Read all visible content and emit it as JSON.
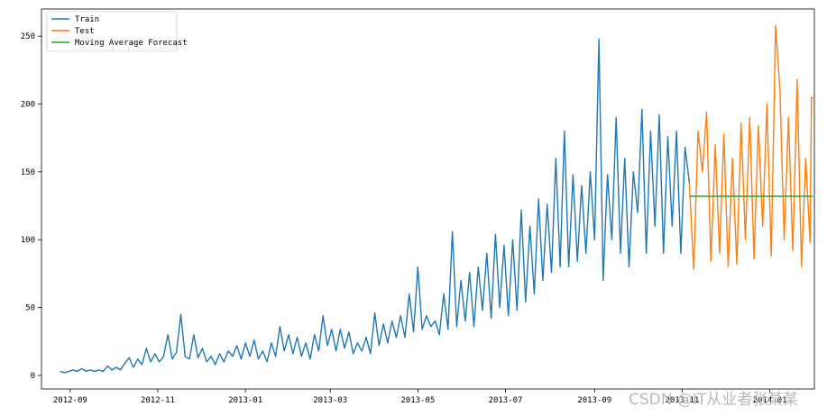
{
  "chart_data": {
    "type": "line",
    "title": "",
    "xlabel": "",
    "ylabel": "",
    "x_axis": {
      "type": "date",
      "range": [
        "2012-08-12",
        "2014-02-01"
      ],
      "ticks": [
        {
          "date": "2012-09-01",
          "label": "2012-09"
        },
        {
          "date": "2012-11-01",
          "label": "2012-11"
        },
        {
          "date": "2013-01-01",
          "label": "2013-01"
        },
        {
          "date": "2013-03-01",
          "label": "2013-03"
        },
        {
          "date": "2013-05-01",
          "label": "2013-05"
        },
        {
          "date": "2013-07-01",
          "label": "2013-07"
        },
        {
          "date": "2013-09-01",
          "label": "2013-09"
        },
        {
          "date": "2013-11-01",
          "label": "2013-11"
        },
        {
          "date": "2014-01-01",
          "label": "2014-01"
        }
      ]
    },
    "y_axis": {
      "range": [
        -10,
        270
      ],
      "ticks": [
        0,
        50,
        100,
        150,
        200,
        250
      ]
    },
    "grid": false,
    "legend": {
      "placement": "upper-left"
    },
    "series": [
      {
        "name": "Train",
        "color": "#1f77b4",
        "points": [
          [
            "2012-08-25",
            3
          ],
          [
            "2012-08-28",
            2
          ],
          [
            "2012-08-31",
            3
          ],
          [
            "2012-09-03",
            4
          ],
          [
            "2012-09-06",
            3
          ],
          [
            "2012-09-09",
            5
          ],
          [
            "2012-09-12",
            3
          ],
          [
            "2012-09-15",
            4
          ],
          [
            "2012-09-18",
            3
          ],
          [
            "2012-09-21",
            4
          ],
          [
            "2012-09-24",
            3
          ],
          [
            "2012-09-27",
            7
          ],
          [
            "2012-09-30",
            4
          ],
          [
            "2012-10-03",
            6
          ],
          [
            "2012-10-06",
            4
          ],
          [
            "2012-10-09",
            9
          ],
          [
            "2012-10-12",
            13
          ],
          [
            "2012-10-15",
            6
          ],
          [
            "2012-10-18",
            12
          ],
          [
            "2012-10-21",
            8
          ],
          [
            "2012-10-24",
            20
          ],
          [
            "2012-10-27",
            10
          ],
          [
            "2012-10-30",
            16
          ],
          [
            "2012-11-02",
            10
          ],
          [
            "2012-11-05",
            14
          ],
          [
            "2012-11-08",
            30
          ],
          [
            "2012-11-11",
            12
          ],
          [
            "2012-11-14",
            17
          ],
          [
            "2012-11-17",
            45
          ],
          [
            "2012-11-20",
            14
          ],
          [
            "2012-11-23",
            12
          ],
          [
            "2012-11-26",
            30
          ],
          [
            "2012-11-29",
            13
          ],
          [
            "2012-12-02",
            20
          ],
          [
            "2012-12-05",
            10
          ],
          [
            "2012-12-08",
            14
          ],
          [
            "2012-12-11",
            8
          ],
          [
            "2012-12-14",
            16
          ],
          [
            "2012-12-17",
            10
          ],
          [
            "2012-12-20",
            18
          ],
          [
            "2012-12-23",
            14
          ],
          [
            "2012-12-26",
            22
          ],
          [
            "2012-12-29",
            12
          ],
          [
            "2013-01-01",
            24
          ],
          [
            "2013-01-04",
            14
          ],
          [
            "2013-01-07",
            26
          ],
          [
            "2013-01-10",
            12
          ],
          [
            "2013-01-13",
            18
          ],
          [
            "2013-01-16",
            10
          ],
          [
            "2013-01-19",
            24
          ],
          [
            "2013-01-22",
            14
          ],
          [
            "2013-01-25",
            36
          ],
          [
            "2013-01-28",
            18
          ],
          [
            "2013-01-31",
            30
          ],
          [
            "2013-02-03",
            16
          ],
          [
            "2013-02-06",
            28
          ],
          [
            "2013-02-09",
            14
          ],
          [
            "2013-02-12",
            24
          ],
          [
            "2013-02-15",
            12
          ],
          [
            "2013-02-18",
            30
          ],
          [
            "2013-02-21",
            18
          ],
          [
            "2013-02-24",
            44
          ],
          [
            "2013-02-27",
            22
          ],
          [
            "2013-03-02",
            34
          ],
          [
            "2013-03-05",
            18
          ],
          [
            "2013-03-08",
            34
          ],
          [
            "2013-03-11",
            20
          ],
          [
            "2013-03-14",
            32
          ],
          [
            "2013-03-17",
            16
          ],
          [
            "2013-03-20",
            24
          ],
          [
            "2013-03-23",
            18
          ],
          [
            "2013-03-26",
            28
          ],
          [
            "2013-03-29",
            16
          ],
          [
            "2013-04-01",
            46
          ],
          [
            "2013-04-04",
            22
          ],
          [
            "2013-04-07",
            38
          ],
          [
            "2013-04-10",
            24
          ],
          [
            "2013-04-13",
            40
          ],
          [
            "2013-04-16",
            28
          ],
          [
            "2013-04-19",
            44
          ],
          [
            "2013-04-22",
            28
          ],
          [
            "2013-04-25",
            60
          ],
          [
            "2013-04-28",
            32
          ],
          [
            "2013-05-01",
            80
          ],
          [
            "2013-05-04",
            34
          ],
          [
            "2013-05-07",
            44
          ],
          [
            "2013-05-10",
            36
          ],
          [
            "2013-05-13",
            40
          ],
          [
            "2013-05-16",
            30
          ],
          [
            "2013-05-19",
            60
          ],
          [
            "2013-05-22",
            34
          ],
          [
            "2013-05-25",
            106
          ],
          [
            "2013-05-28",
            36
          ],
          [
            "2013-05-31",
            70
          ],
          [
            "2013-06-03",
            40
          ],
          [
            "2013-06-06",
            76
          ],
          [
            "2013-06-09",
            36
          ],
          [
            "2013-06-12",
            80
          ],
          [
            "2013-06-15",
            48
          ],
          [
            "2013-06-18",
            90
          ],
          [
            "2013-06-21",
            42
          ],
          [
            "2013-06-24",
            104
          ],
          [
            "2013-06-27",
            50
          ],
          [
            "2013-06-30",
            96
          ],
          [
            "2013-07-03",
            44
          ],
          [
            "2013-07-06",
            100
          ],
          [
            "2013-07-09",
            48
          ],
          [
            "2013-07-12",
            122
          ],
          [
            "2013-07-15",
            54
          ],
          [
            "2013-07-18",
            110
          ],
          [
            "2013-07-21",
            60
          ],
          [
            "2013-07-24",
            130
          ],
          [
            "2013-07-27",
            70
          ],
          [
            "2013-07-30",
            126
          ],
          [
            "2013-08-02",
            76
          ],
          [
            "2013-08-05",
            160
          ],
          [
            "2013-08-08",
            80
          ],
          [
            "2013-08-11",
            180
          ],
          [
            "2013-08-14",
            80
          ],
          [
            "2013-08-17",
            148
          ],
          [
            "2013-08-20",
            84
          ],
          [
            "2013-08-23",
            140
          ],
          [
            "2013-08-26",
            90
          ],
          [
            "2013-08-29",
            150
          ],
          [
            "2013-09-01",
            100
          ],
          [
            "2013-09-04",
            248
          ],
          [
            "2013-09-07",
            70
          ],
          [
            "2013-09-10",
            148
          ],
          [
            "2013-09-13",
            100
          ],
          [
            "2013-09-16",
            190
          ],
          [
            "2013-09-19",
            90
          ],
          [
            "2013-09-22",
            160
          ],
          [
            "2013-09-25",
            80
          ],
          [
            "2013-09-28",
            150
          ],
          [
            "2013-10-01",
            120
          ],
          [
            "2013-10-04",
            196
          ],
          [
            "2013-10-07",
            90
          ],
          [
            "2013-10-10",
            180
          ],
          [
            "2013-10-13",
            110
          ],
          [
            "2013-10-16",
            192
          ],
          [
            "2013-10-19",
            90
          ],
          [
            "2013-10-22",
            176
          ],
          [
            "2013-10-25",
            110
          ],
          [
            "2013-10-28",
            180
          ],
          [
            "2013-10-31",
            90
          ],
          [
            "2013-11-03",
            168
          ],
          [
            "2013-11-06",
            142
          ]
        ]
      },
      {
        "name": "Test",
        "color": "#ff7f0e",
        "points": [
          [
            "2013-11-06",
            142
          ],
          [
            "2013-11-09",
            78
          ],
          [
            "2013-11-12",
            180
          ],
          [
            "2013-11-15",
            150
          ],
          [
            "2013-11-18",
            194
          ],
          [
            "2013-11-21",
            84
          ],
          [
            "2013-11-24",
            170
          ],
          [
            "2013-11-27",
            90
          ],
          [
            "2013-11-30",
            178
          ],
          [
            "2013-12-03",
            80
          ],
          [
            "2013-12-06",
            160
          ],
          [
            "2013-12-09",
            82
          ],
          [
            "2013-12-12",
            186
          ],
          [
            "2013-12-15",
            100
          ],
          [
            "2013-12-18",
            190
          ],
          [
            "2013-12-21",
            86
          ],
          [
            "2013-12-24",
            184
          ],
          [
            "2013-12-27",
            110
          ],
          [
            "2013-12-30",
            200
          ],
          [
            "2014-01-02",
            88
          ],
          [
            "2014-01-05",
            258
          ],
          [
            "2014-01-08",
            210
          ],
          [
            "2014-01-11",
            100
          ],
          [
            "2014-01-14",
            190
          ],
          [
            "2014-01-17",
            92
          ],
          [
            "2014-01-20",
            218
          ],
          [
            "2014-01-23",
            80
          ],
          [
            "2014-01-26",
            160
          ],
          [
            "2014-01-29",
            98
          ],
          [
            "2014-01-30",
            205
          ],
          [
            "2014-01-31",
            204
          ]
        ]
      },
      {
        "name": "Moving Average Forecast",
        "color": "#2ca02c",
        "points": [
          [
            "2013-11-06",
            132
          ],
          [
            "2014-01-31",
            132
          ]
        ]
      }
    ]
  },
  "watermark": "CSDN @IT从业者张某某"
}
